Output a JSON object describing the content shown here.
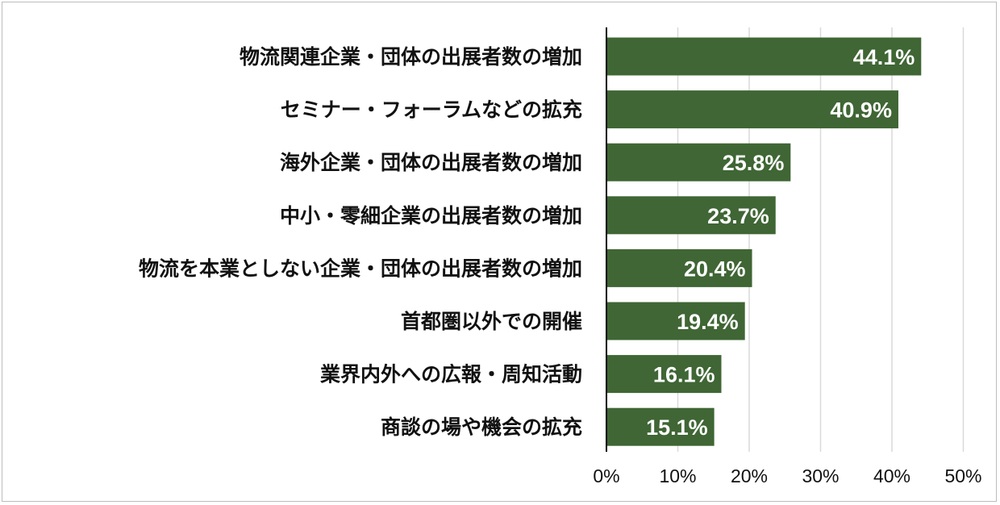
{
  "chart_data": {
    "type": "bar",
    "orientation": "horizontal",
    "categories": [
      "物流関連企業・団体の出展者数の増加",
      "セミナー・フォーラムなどの拡充",
      "海外企業・団体の出展者数の増加",
      "中小・零細企業の出展者数の増加",
      "物流を本業としない企業・団体の出展者数の増加",
      "首都圏以外での開催",
      "業界内外への広報・周知活動",
      "商談の場や機会の拡充"
    ],
    "values": [
      44.1,
      40.9,
      25.8,
      23.7,
      20.4,
      19.4,
      16.1,
      15.1
    ],
    "value_labels": [
      "44.1%",
      "40.9%",
      "25.8%",
      "23.7%",
      "20.4%",
      "19.4%",
      "16.1%",
      "15.1%"
    ],
    "xlim": [
      0,
      50
    ],
    "x_ticks": [
      0,
      10,
      20,
      30,
      40,
      50
    ],
    "x_tick_labels": [
      "0%",
      "10%",
      "20%",
      "30%",
      "40%",
      "50%"
    ],
    "grid": "vertical",
    "bar_color": "#3f6634",
    "grid_color": "#d9d9d9",
    "axis_color": "#000000",
    "title": "",
    "xlabel": "",
    "ylabel": ""
  }
}
